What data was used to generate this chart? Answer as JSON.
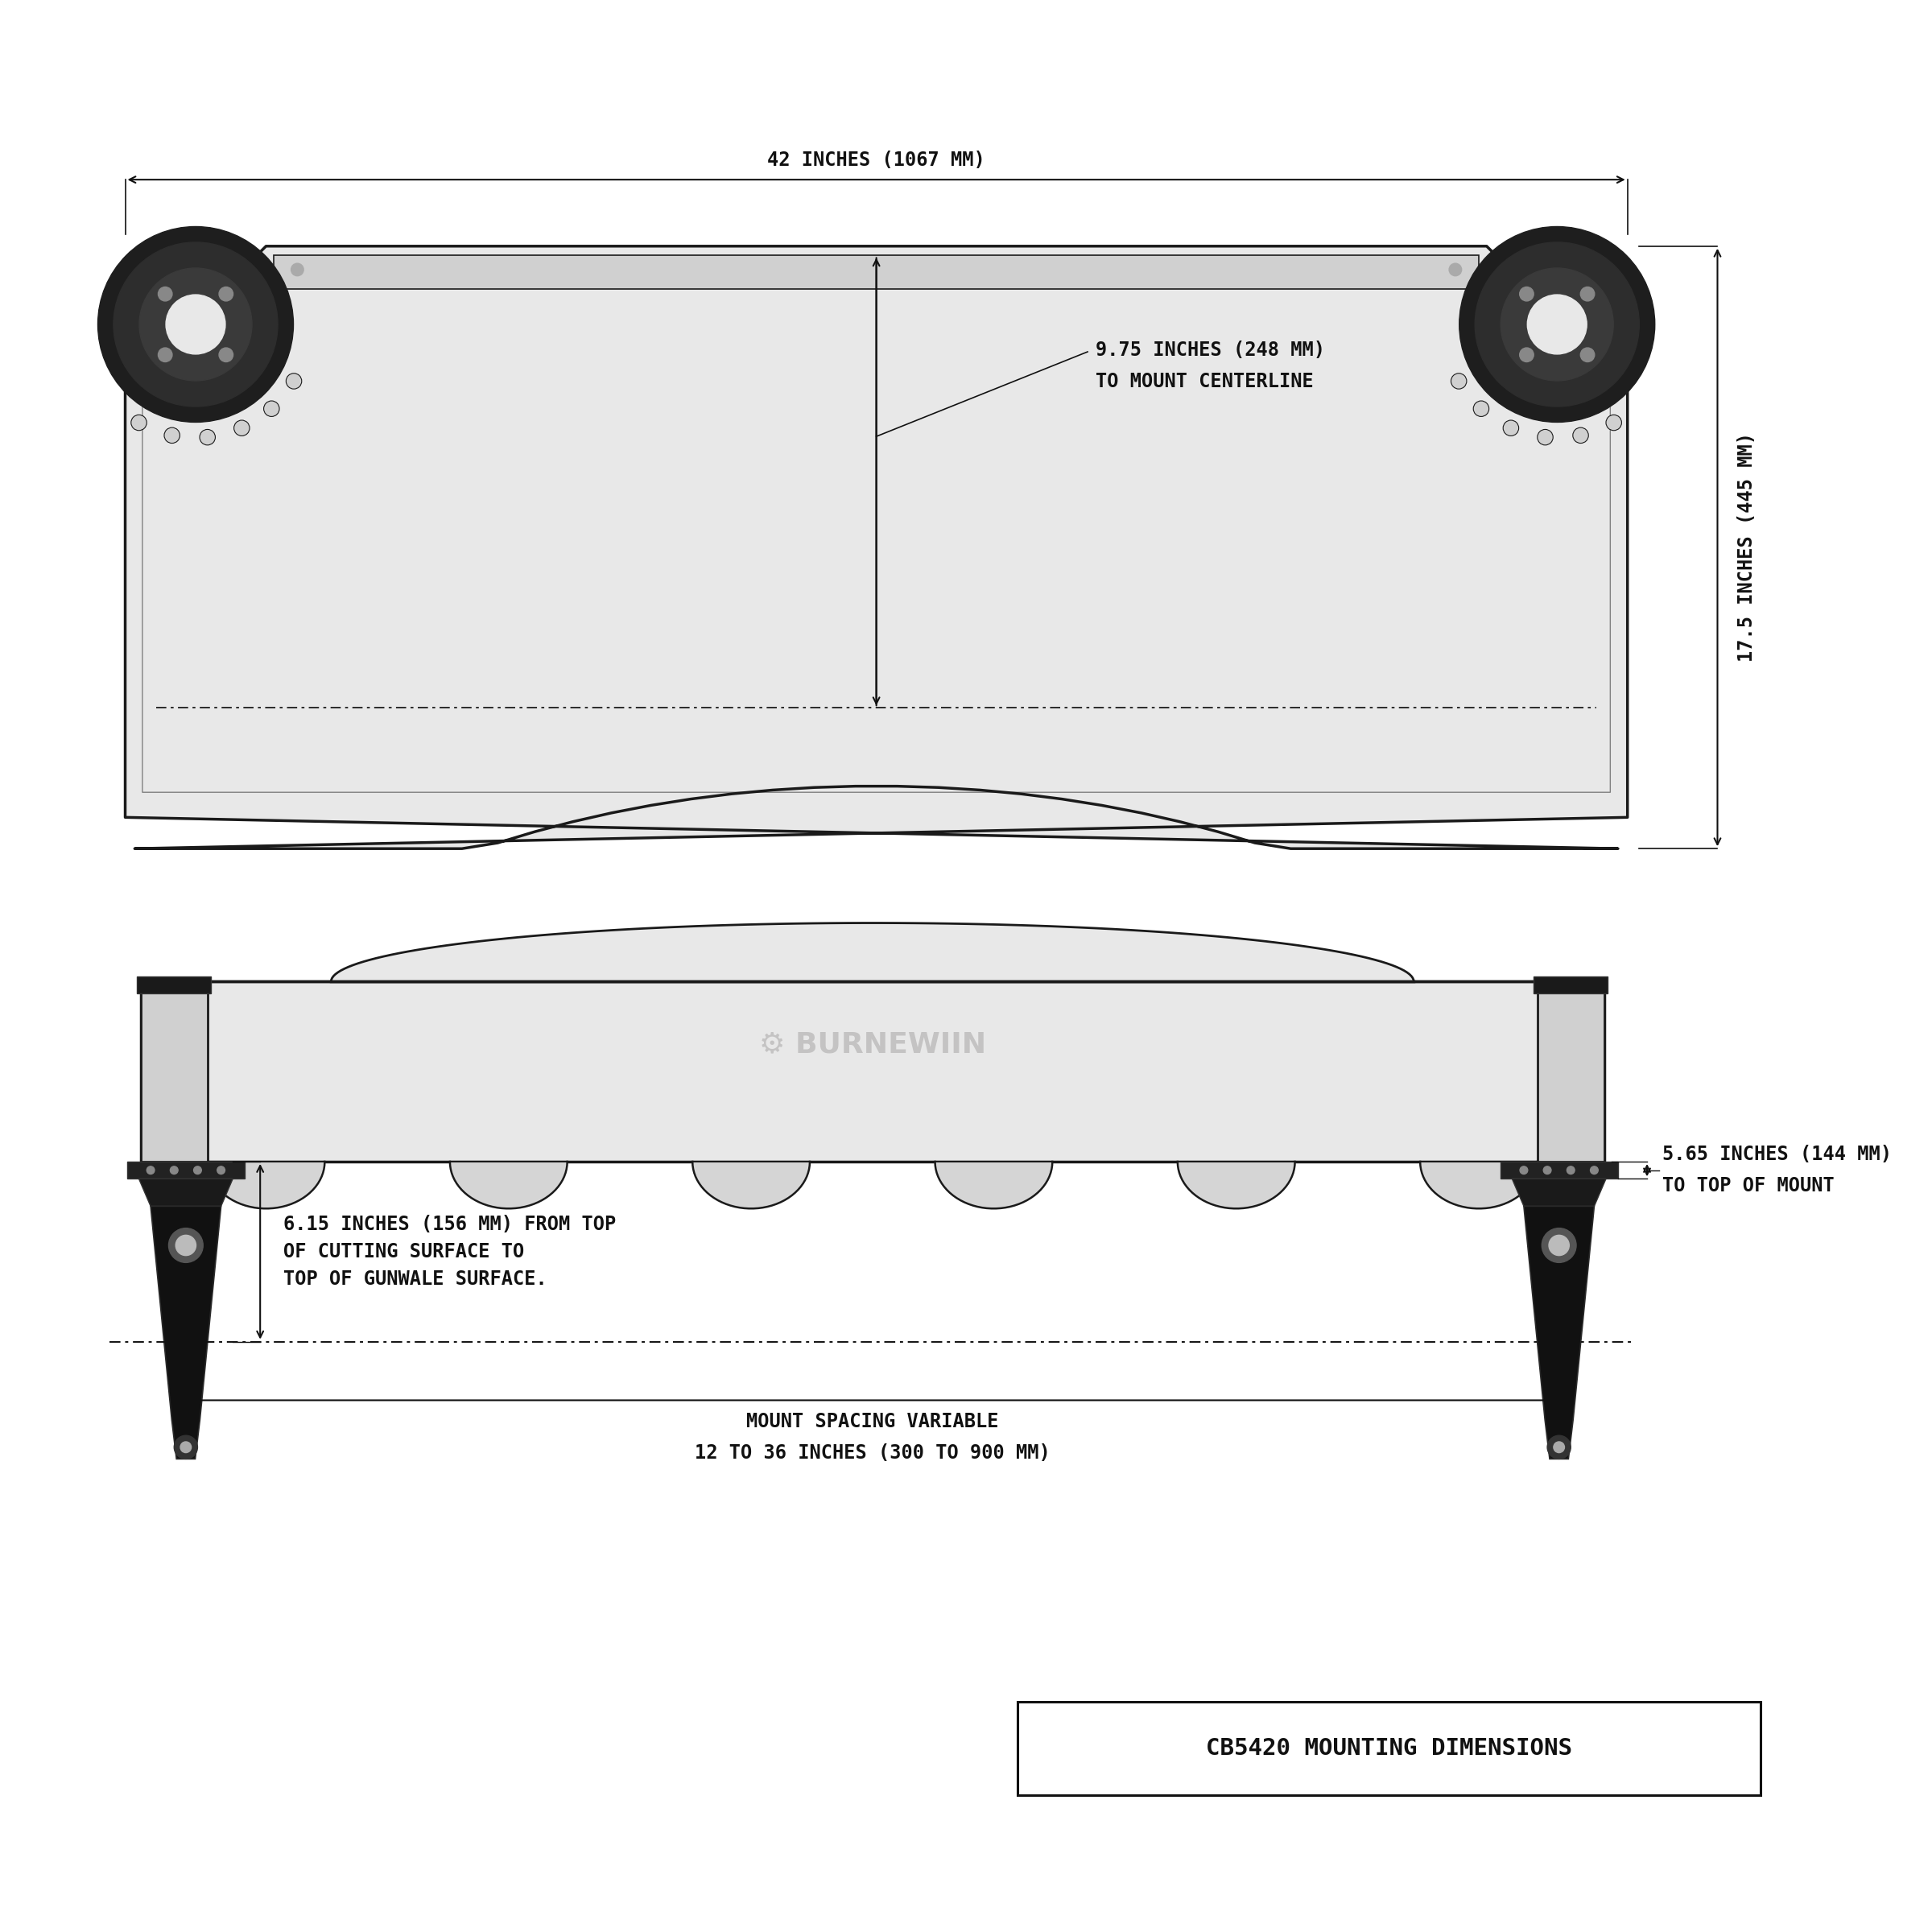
{
  "bg_color": "#ffffff",
  "line_color": "#1a1a1a",
  "dim_color": "#111111",
  "board_fill": "#e8e8e8",
  "board_inner_fill": "#f4f4f4",
  "silver": "#d0d0d0",
  "dark_gray": "#2a2a2a",
  "mid_gray": "#888888",
  "light_gray": "#cccccc",
  "brand_gray": "#c0bfbf",
  "title": "CB5420 MOUNTING DIMENSIONS",
  "dim_42in": "42 INCHES (1067 MM)",
  "dim_175in": "17.5 INCHES (445 MM)",
  "dim_975in_1": "9.75 INCHES (248 MM)",
  "dim_975in_2": "TO MOUNT CENTERLINE",
  "dim_615in_1": "6.15 INCHES (156 MM) FROM TOP",
  "dim_615in_2": "OF CUTTING SURFACE TO",
  "dim_615in_3": "TOP OF GUNWALE SURFACE.",
  "dim_565in_1": "5.65 INCHES (144 MM)",
  "dim_565in_2": "TO TOP OF MOUNT",
  "dim_mount_1": "MOUNT SPACING VARIABLE",
  "dim_mount_2": "12 TO 36 INCHES (300 TO 900 MM)",
  "brand_text": "⚙ BURNEWIIN",
  "fs_dim": 17,
  "fs_title": 21,
  "fs_brand": 26
}
